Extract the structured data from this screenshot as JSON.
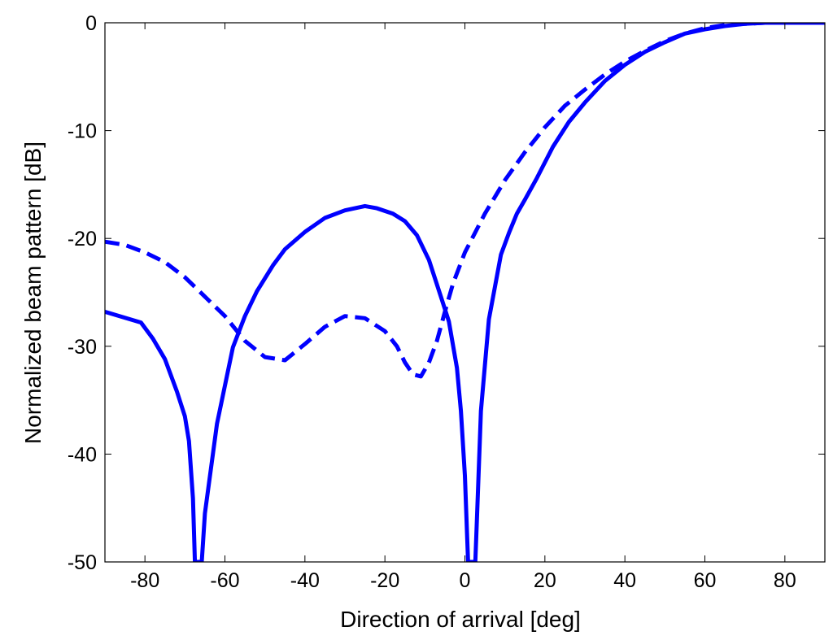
{
  "chart_data": {
    "type": "line",
    "xlabel": "Direction of arrival [deg]",
    "ylabel": "Normalized beam pattern [dB]",
    "xlim": [
      -90,
      90
    ],
    "ylim": [
      -50,
      0
    ],
    "xticks": [
      -80,
      -60,
      -40,
      -20,
      0,
      20,
      40,
      60,
      80
    ],
    "yticks": [
      0,
      -10,
      -20,
      -30,
      -40,
      -50
    ],
    "grid": false,
    "legend": "none",
    "series": [
      {
        "style": "solid",
        "color": "#0000ff",
        "x": [
          -90,
          -81,
          -78,
          -75,
          -72,
          -70,
          -69,
          -68,
          -67.5,
          -66.6,
          -65.8,
          -65,
          -62,
          -58,
          -55,
          -52,
          -48,
          -45,
          -40,
          -35,
          -30,
          -25,
          -22,
          -18,
          -15,
          -12,
          -9,
          -6,
          -4,
          -2,
          -1,
          0,
          0.8,
          1.4,
          2.0,
          2.6,
          3.0,
          4,
          6,
          9,
          11,
          13,
          15,
          18,
          22,
          26,
          30,
          35,
          40,
          45,
          50,
          55,
          60,
          65,
          70,
          75,
          78,
          80,
          85,
          90
        ],
        "y": [
          -26.8,
          -27.8,
          -29.3,
          -31.2,
          -34.2,
          -36.5,
          -38.8,
          -44.1,
          -50,
          -50,
          -50,
          -45.5,
          -37.2,
          -30.1,
          -27.2,
          -24.9,
          -22.5,
          -21.0,
          -19.4,
          -18.1,
          -17.4,
          -17.0,
          -17.2,
          -17.7,
          -18.4,
          -19.7,
          -22.0,
          -25.4,
          -27.7,
          -32.0,
          -36.0,
          -42.0,
          -50,
          -50,
          -50,
          -50,
          -46.0,
          -36.0,
          -27.5,
          -21.5,
          -19.5,
          -17.7,
          -16.4,
          -14.4,
          -11.5,
          -9.2,
          -7.4,
          -5.4,
          -3.9,
          -2.7,
          -1.8,
          -1.0,
          -0.6,
          -0.3,
          -0.1,
          0,
          0,
          0,
          0,
          0
        ]
      },
      {
        "style": "dashed",
        "color": "#0000ff",
        "x": [
          -90,
          -85,
          -80,
          -75,
          -70,
          -65,
          -60,
          -55,
          -50,
          -45,
          -40,
          -35,
          -30,
          -25,
          -20,
          -17,
          -15,
          -13,
          -11,
          -9,
          -7,
          -5,
          -3,
          0,
          5,
          10,
          15,
          20,
          25,
          30,
          35,
          40,
          45,
          50,
          55,
          60,
          65,
          70,
          75,
          80,
          85,
          90
        ],
        "y": [
          -20.3,
          -20.6,
          -21.3,
          -22.2,
          -23.6,
          -25.4,
          -27.2,
          -29.5,
          -31.0,
          -31.3,
          -29.8,
          -28.2,
          -27.2,
          -27.4,
          -28.6,
          -30.0,
          -31.5,
          -32.6,
          -32.8,
          -31.5,
          -29.5,
          -26.8,
          -24.2,
          -21.3,
          -17.7,
          -14.6,
          -12.0,
          -9.7,
          -7.7,
          -6.2,
          -4.8,
          -3.6,
          -2.6,
          -1.7,
          -1.0,
          -0.5,
          -0.2,
          -0.1,
          0,
          0,
          0,
          0
        ]
      }
    ]
  }
}
